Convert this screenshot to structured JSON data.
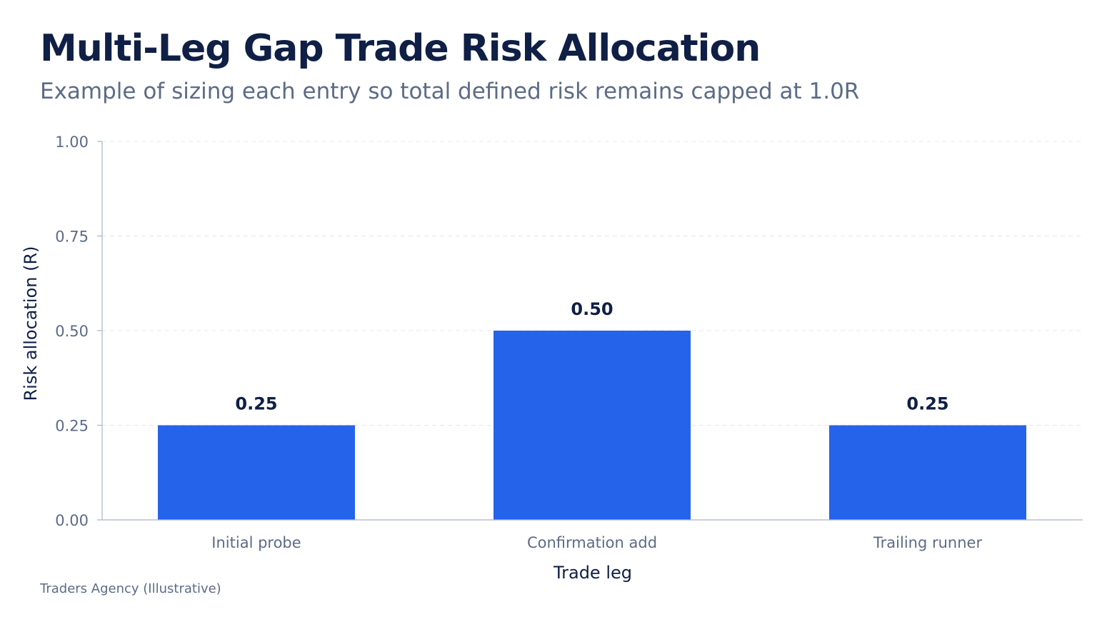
{
  "header": {
    "title": "Multi-Leg Gap Trade Risk Allocation",
    "subtitle": "Example of sizing each entry so total defined risk remains capped at 1.0R"
  },
  "footer": {
    "source": "Traders Agency (Illustrative)"
  },
  "colors": {
    "bar": "#2563eb",
    "title": "#0f1f45",
    "muted": "#5c6b86",
    "grid": "#e3e8ef",
    "axis": "#aab4c3"
  },
  "chart_data": {
    "type": "bar",
    "title": "Multi-Leg Gap Trade Risk Allocation",
    "subtitle": "Example of sizing each entry so total defined risk remains capped at 1.0R",
    "xlabel": "Trade leg",
    "ylabel": "Risk allocation (R)",
    "categories": [
      "Initial probe",
      "Confirmation add",
      "Trailing runner"
    ],
    "values": [
      0.25,
      0.5,
      0.25
    ],
    "data_labels": [
      "0.25",
      "0.50",
      "0.25"
    ],
    "ylim": [
      0,
      1
    ],
    "yticks": [
      0,
      0.25,
      0.5,
      0.75,
      1
    ],
    "ytick_labels": [
      "0.00",
      "0.25",
      "0.50",
      "0.75",
      "1.00"
    ],
    "grid": true,
    "legend": "none"
  }
}
